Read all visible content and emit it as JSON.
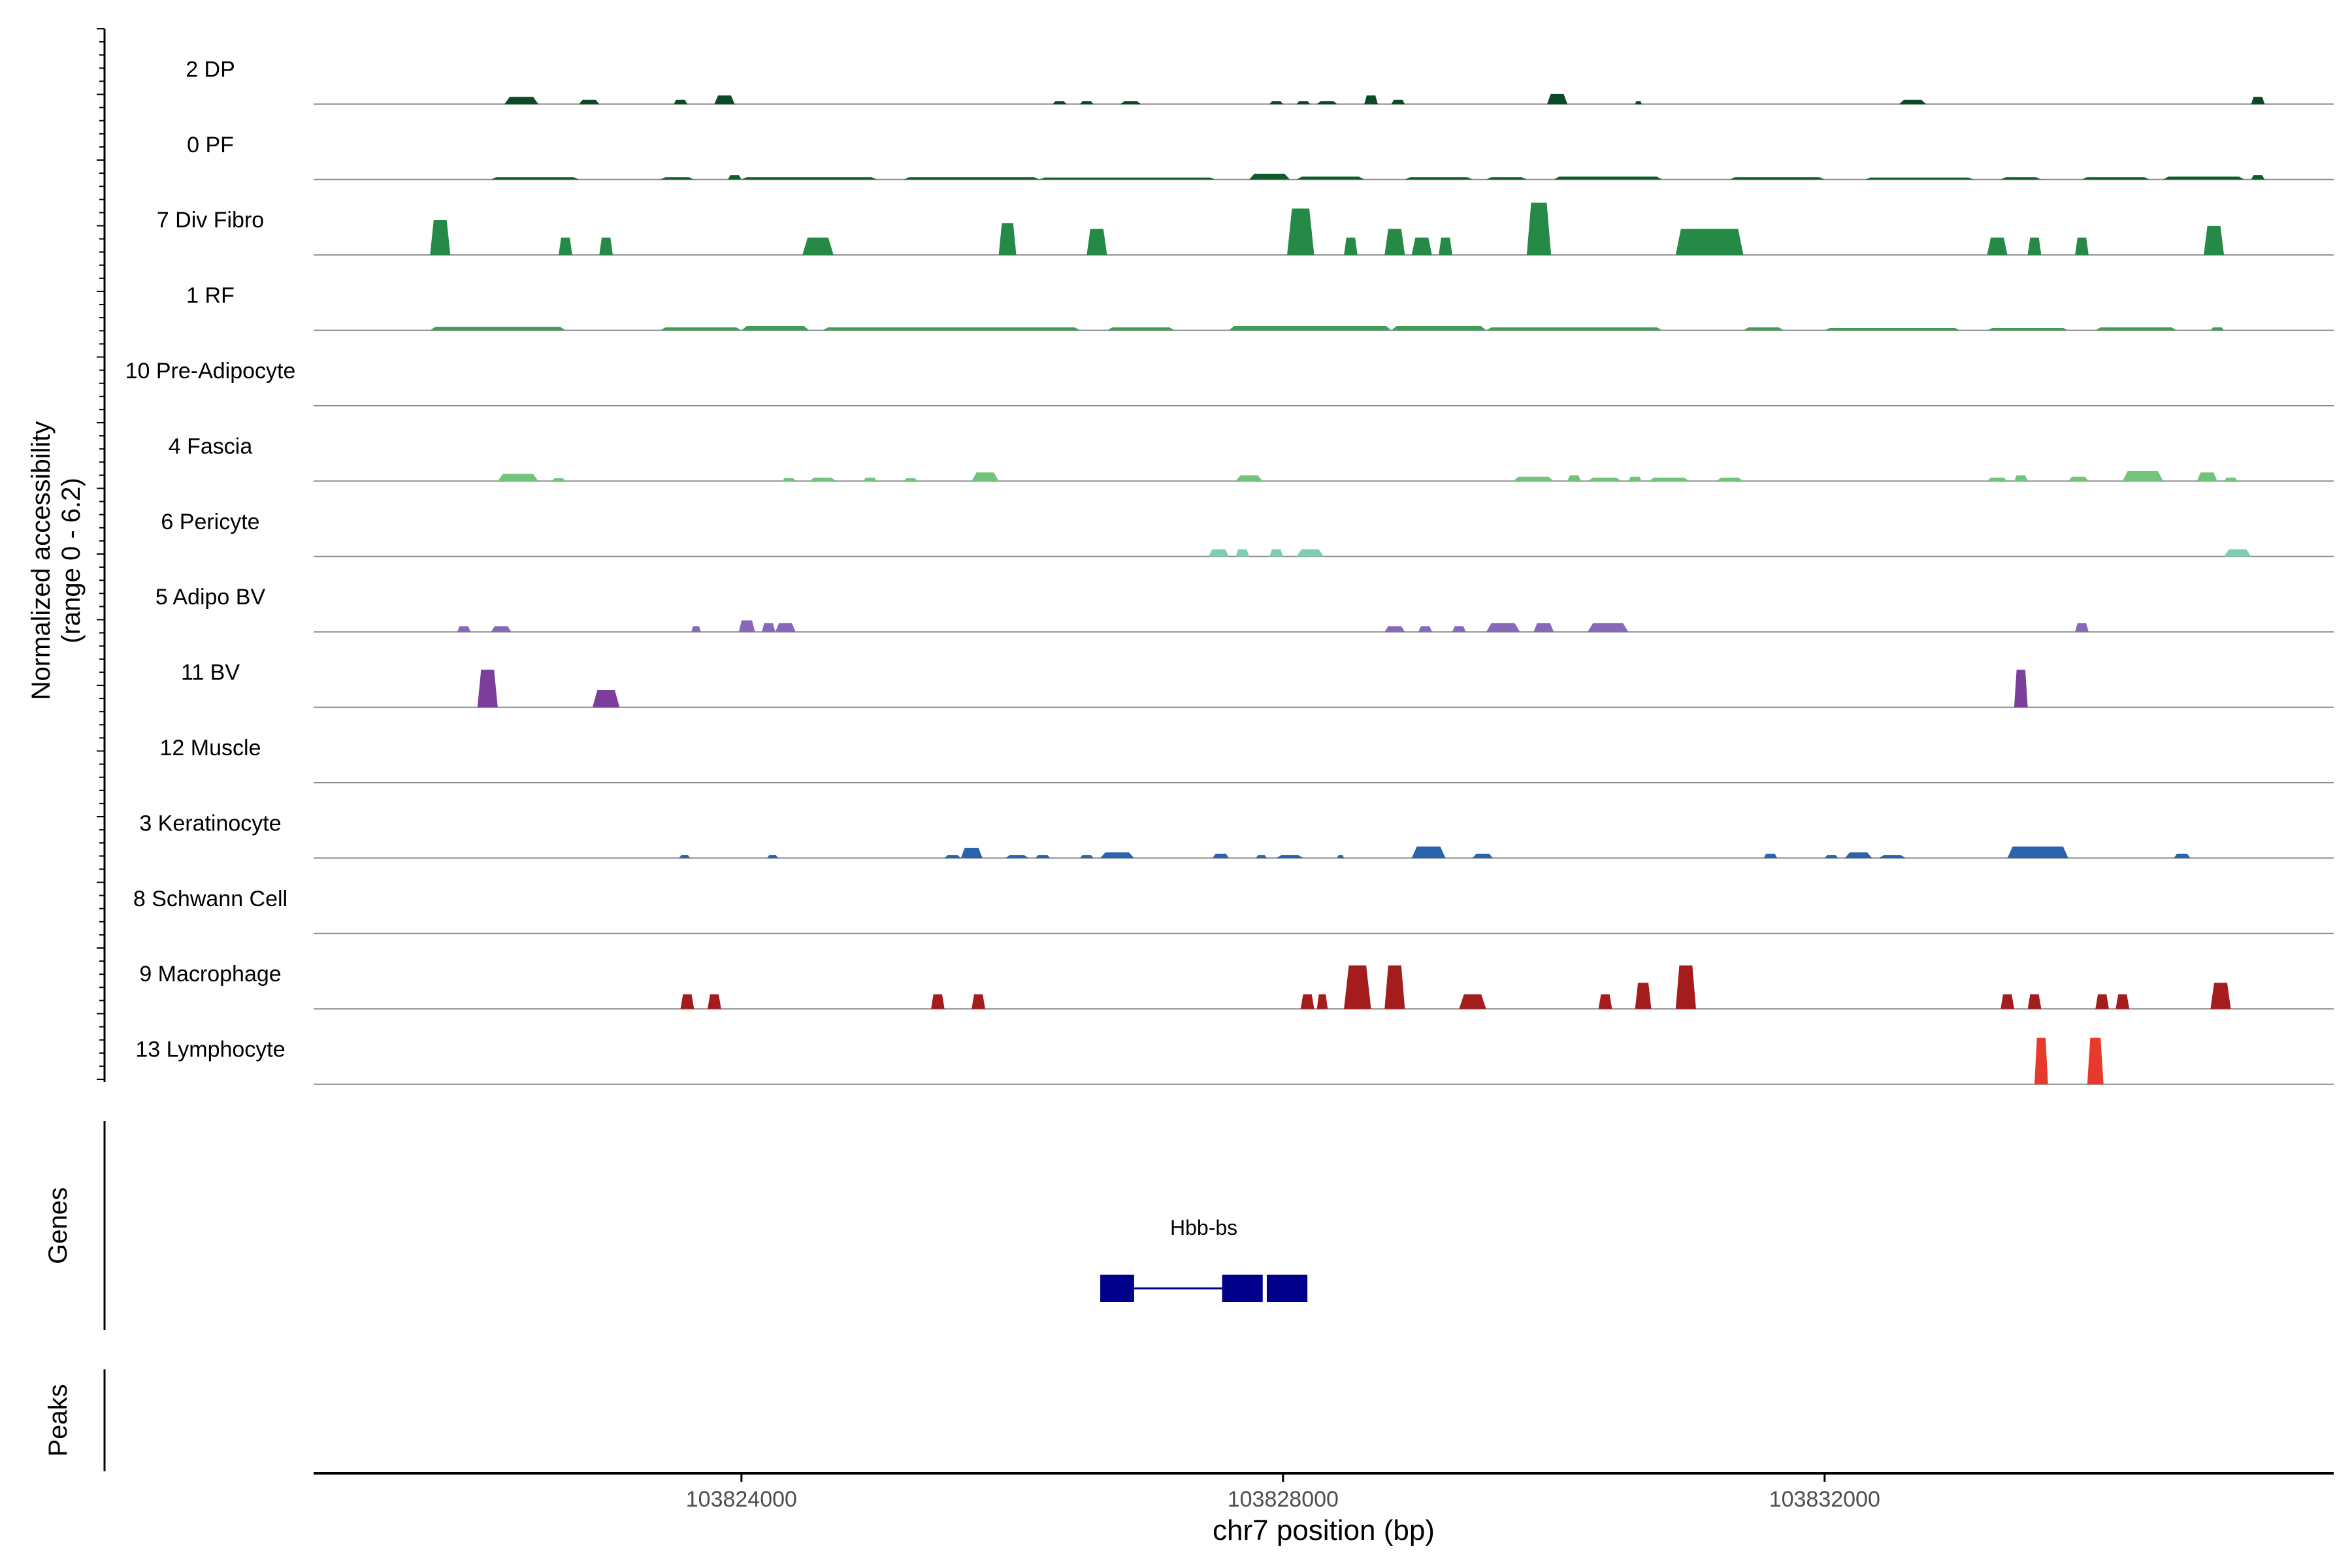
{
  "chart_data": {
    "type": "area",
    "title": "",
    "xlabel": "chr7 position (bp)",
    "ylabel": "Normalized accessibility\n(range 0 - 6.2)",
    "ylabel_lines": [
      "Normalized accessibility",
      "(range 0 - 6.2)"
    ],
    "ylim": [
      0,
      6.2
    ],
    "xlim": [
      103820840,
      103835760
    ],
    "x_ticks": [
      103824000,
      103828000,
      103832000
    ],
    "x_tick_labels": [
      "103824000",
      "103828000",
      "103832000"
    ],
    "grid": false,
    "legend": "none",
    "series": [
      {
        "name": "2 DP",
        "color": "#0b4a24",
        "peaks": [
          [
            103822250,
            103822500,
            0.25
          ],
          [
            103822800,
            103822950,
            0.15
          ],
          [
            103823500,
            103823600,
            0.15
          ],
          [
            103823800,
            103823950,
            0.3
          ],
          [
            103826300,
            103826400,
            0.1
          ],
          [
            103826500,
            103826600,
            0.1
          ],
          [
            103826800,
            103826950,
            0.1
          ],
          [
            103827900,
            103828000,
            0.1
          ],
          [
            103828100,
            103828200,
            0.1
          ],
          [
            103828250,
            103828400,
            0.1
          ],
          [
            103828600,
            103828700,
            0.3
          ],
          [
            103828800,
            103828900,
            0.15
          ],
          [
            103829950,
            103830100,
            0.35
          ],
          [
            103830600,
            103830650,
            0.1
          ],
          [
            103832550,
            103832750,
            0.15
          ],
          [
            103835150,
            103835250,
            0.25
          ]
        ]
      },
      {
        "name": "0 PF",
        "color": "#0f5c2b",
        "peaks": [
          [
            103822150,
            103822800,
            0.08
          ],
          [
            103823400,
            103823650,
            0.08
          ],
          [
            103823900,
            103824000,
            0.15
          ],
          [
            103824000,
            103825000,
            0.08
          ],
          [
            103825200,
            103826200,
            0.08
          ],
          [
            103826200,
            103827500,
            0.06
          ],
          [
            103827750,
            103828050,
            0.2
          ],
          [
            103828100,
            103828600,
            0.1
          ],
          [
            103828900,
            103829400,
            0.08
          ],
          [
            103829500,
            103829800,
            0.08
          ],
          [
            103830000,
            103830800,
            0.1
          ],
          [
            103831300,
            103832000,
            0.08
          ],
          [
            103832300,
            103833100,
            0.06
          ],
          [
            103833300,
            103833600,
            0.08
          ],
          [
            103833900,
            103834400,
            0.08
          ],
          [
            103834500,
            103835100,
            0.1
          ],
          [
            103835150,
            103835250,
            0.15
          ]
        ]
      },
      {
        "name": "7 Div Fibro",
        "color": "#258a46",
        "peaks": [
          [
            103821700,
            103821850,
            1.2
          ],
          [
            103822650,
            103822750,
            0.6
          ],
          [
            103822950,
            103823050,
            0.6
          ],
          [
            103824450,
            103824680,
            0.6
          ],
          [
            103825900,
            103826030,
            1.1
          ],
          [
            103826550,
            103826700,
            0.9
          ],
          [
            103828030,
            103828230,
            1.6
          ],
          [
            103828450,
            103828550,
            0.6
          ],
          [
            103828750,
            103828900,
            0.9
          ],
          [
            103828950,
            103829100,
            0.6
          ],
          [
            103829150,
            103829250,
            0.6
          ],
          [
            103829800,
            103829980,
            1.8
          ],
          [
            103830900,
            103831400,
            0.9
          ],
          [
            103833200,
            103833350,
            0.6
          ],
          [
            103833500,
            103833600,
            0.6
          ],
          [
            103833850,
            103833950,
            0.6
          ],
          [
            103834800,
            103834950,
            1.0
          ]
        ]
      },
      {
        "name": "1 RF",
        "color": "#3d9e55",
        "peaks": [
          [
            103821700,
            103822700,
            0.12
          ],
          [
            103823400,
            103824000,
            0.1
          ],
          [
            103824000,
            103824500,
            0.15
          ],
          [
            103824600,
            103826500,
            0.1
          ],
          [
            103826700,
            103827200,
            0.1
          ],
          [
            103827600,
            103828800,
            0.15
          ],
          [
            103828800,
            103829500,
            0.15
          ],
          [
            103829500,
            103830800,
            0.1
          ],
          [
            103831400,
            103831700,
            0.1
          ],
          [
            103832000,
            103833000,
            0.08
          ],
          [
            103833200,
            103833800,
            0.08
          ],
          [
            103834000,
            103834600,
            0.1
          ],
          [
            103834850,
            103834950,
            0.1
          ]
        ]
      },
      {
        "name": "10 Pre-Adipocyte",
        "color": "#5aaf68",
        "peaks": []
      },
      {
        "name": "4 Fascia",
        "color": "#71c47a",
        "peaks": [
          [
            103822200,
            103822500,
            0.25
          ],
          [
            103822600,
            103822700,
            0.1
          ],
          [
            103824300,
            103824400,
            0.1
          ],
          [
            103824500,
            103824700,
            0.12
          ],
          [
            103824900,
            103825000,
            0.12
          ],
          [
            103825200,
            103825300,
            0.1
          ],
          [
            103825700,
            103825900,
            0.3
          ],
          [
            103827650,
            103827850,
            0.2
          ],
          [
            103829700,
            103830000,
            0.15
          ],
          [
            103830100,
            103830200,
            0.2
          ],
          [
            103830250,
            103830500,
            0.12
          ],
          [
            103830550,
            103830650,
            0.15
          ],
          [
            103830700,
            103831000,
            0.12
          ],
          [
            103831200,
            103831400,
            0.12
          ],
          [
            103833200,
            103833350,
            0.12
          ],
          [
            103833400,
            103833500,
            0.2
          ],
          [
            103833800,
            103833950,
            0.15
          ],
          [
            103834200,
            103834500,
            0.35
          ],
          [
            103834750,
            103834900,
            0.3
          ],
          [
            103834950,
            103835050,
            0.12
          ]
        ]
      },
      {
        "name": "6 Pericyte",
        "color": "#7ecdb6",
        "peaks": [
          [
            103827450,
            103827600,
            0.25
          ],
          [
            103827650,
            103827750,
            0.25
          ],
          [
            103827900,
            103828000,
            0.25
          ],
          [
            103828100,
            103828300,
            0.25
          ],
          [
            103834950,
            103835150,
            0.25
          ]
        ]
      },
      {
        "name": "5 Adipo BV",
        "color": "#8868b8",
        "peaks": [
          [
            103821900,
            103822000,
            0.2
          ],
          [
            103822150,
            103822300,
            0.2
          ],
          [
            103823630,
            103823700,
            0.2
          ],
          [
            103823980,
            103824100,
            0.4
          ],
          [
            103824150,
            103824250,
            0.3
          ],
          [
            103824250,
            103824400,
            0.3
          ],
          [
            103828750,
            103828900,
            0.2
          ],
          [
            103829000,
            103829100,
            0.2
          ],
          [
            103829250,
            103829350,
            0.2
          ],
          [
            103829500,
            103829750,
            0.3
          ],
          [
            103829850,
            103830000,
            0.3
          ],
          [
            103830250,
            103830550,
            0.3
          ],
          [
            103833850,
            103833950,
            0.3
          ]
        ]
      },
      {
        "name": "11 BV",
        "color": "#7b3e9b",
        "peaks": [
          [
            103822050,
            103822200,
            1.3
          ],
          [
            103822900,
            103823100,
            0.6
          ],
          [
            103833400,
            103833500,
            1.3
          ]
        ]
      },
      {
        "name": "12 Muscle",
        "color": "#2e6fb7",
        "peaks": []
      },
      {
        "name": "3 Keratinocyte",
        "color": "#2a64ad",
        "peaks": [
          [
            103823540,
            103823620,
            0.1
          ],
          [
            103824190,
            103824270,
            0.1
          ],
          [
            103825500,
            103825620,
            0.1
          ],
          [
            103825620,
            103825780,
            0.35
          ],
          [
            103825950,
            103826120,
            0.1
          ],
          [
            103826170,
            103826280,
            0.1
          ],
          [
            103826500,
            103826600,
            0.1
          ],
          [
            103826650,
            103826900,
            0.2
          ],
          [
            103827480,
            103827600,
            0.15
          ],
          [
            103827800,
            103827880,
            0.1
          ],
          [
            103827950,
            103828150,
            0.1
          ],
          [
            103828400,
            103828450,
            0.1
          ],
          [
            103828950,
            103829200,
            0.4
          ],
          [
            103829400,
            103829550,
            0.15
          ],
          [
            103831550,
            103831650,
            0.15
          ],
          [
            103832000,
            103832100,
            0.1
          ],
          [
            103832150,
            103832350,
            0.2
          ],
          [
            103832400,
            103832600,
            0.1
          ],
          [
            103833350,
            103833800,
            0.4
          ],
          [
            103834580,
            103834700,
            0.15
          ]
        ]
      },
      {
        "name": "8 Schwann Cell",
        "color": "#1f5aa0",
        "peaks": []
      },
      {
        "name": "9 Macrophage",
        "color": "#a51c1c",
        "peaks": [
          [
            103823550,
            103823650,
            0.5
          ],
          [
            103823750,
            103823850,
            0.5
          ],
          [
            103825400,
            103825500,
            0.5
          ],
          [
            103825700,
            103825800,
            0.5
          ],
          [
            103828130,
            103828230,
            0.5
          ],
          [
            103828250,
            103828330,
            0.5
          ],
          [
            103828450,
            103828650,
            1.5
          ],
          [
            103828750,
            103828900,
            1.5
          ],
          [
            103829300,
            103829500,
            0.5
          ],
          [
            103830330,
            103830430,
            0.5
          ],
          [
            103830600,
            103830720,
            0.9
          ],
          [
            103830900,
            103831050,
            1.5
          ],
          [
            103833300,
            103833400,
            0.5
          ],
          [
            103833500,
            103833600,
            0.5
          ],
          [
            103834000,
            103834100,
            0.5
          ],
          [
            103834150,
            103834250,
            0.5
          ],
          [
            103834850,
            103835000,
            0.9
          ]
        ]
      },
      {
        "name": "13 Lymphocyte",
        "color": "#e8392d",
        "peaks": [
          [
            103833550,
            103833650,
            1.6
          ],
          [
            103833940,
            103834060,
            1.6
          ]
        ]
      }
    ],
    "gene_track": {
      "label": "Genes",
      "gene": "Hbb-bs",
      "color": "#00008b",
      "exons": [
        [
          103826650,
          103826900
        ],
        [
          103827550,
          103827850
        ],
        [
          103827880,
          103828180
        ]
      ],
      "intron": [
        103826900,
        103827550
      ]
    },
    "peaks_track": {
      "label": "Peaks"
    }
  }
}
